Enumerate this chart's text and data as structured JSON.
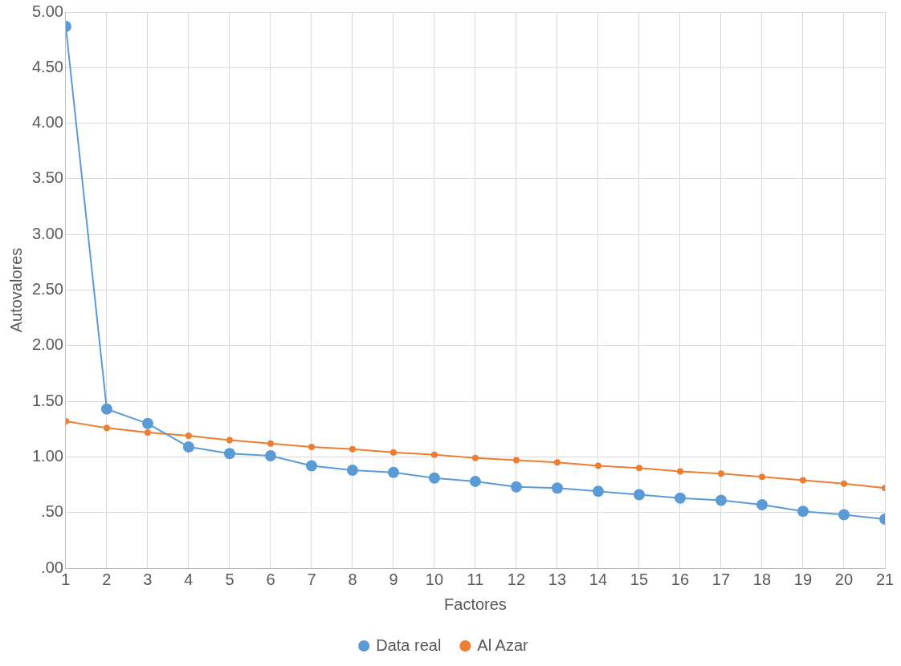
{
  "chart_data": {
    "type": "line",
    "xlabel": "Factores",
    "ylabel": "Autovalores",
    "x": [
      1,
      2,
      3,
      4,
      5,
      6,
      7,
      8,
      9,
      10,
      11,
      12,
      13,
      14,
      15,
      16,
      17,
      18,
      19,
      20,
      21
    ],
    "xlim": [
      1,
      21
    ],
    "xticks": [
      1,
      2,
      3,
      4,
      5,
      6,
      7,
      8,
      9,
      10,
      11,
      12,
      13,
      14,
      15,
      16,
      17,
      18,
      19,
      20,
      21
    ],
    "ylim": [
      0,
      5
    ],
    "yticks": [
      {
        "value": 0,
        "label": ".00"
      },
      {
        "value": 0.5,
        "label": ".50"
      },
      {
        "value": 1,
        "label": "1.00"
      },
      {
        "value": 1.5,
        "label": "1.50"
      },
      {
        "value": 2,
        "label": "2.00"
      },
      {
        "value": 2.5,
        "label": "2.50"
      },
      {
        "value": 3,
        "label": "3.00"
      },
      {
        "value": 3.5,
        "label": "3.50"
      },
      {
        "value": 4,
        "label": "4.00"
      },
      {
        "value": 4.5,
        "label": "4.50"
      },
      {
        "value": 5,
        "label": "5.00"
      }
    ],
    "series": [
      {
        "name": "Data real",
        "color": "#5b9bd5",
        "values": [
          4.87,
          1.43,
          1.3,
          1.09,
          1.03,
          1.01,
          0.92,
          0.88,
          0.86,
          0.81,
          0.78,
          0.73,
          0.72,
          0.69,
          0.66,
          0.63,
          0.61,
          0.57,
          0.51,
          0.48,
          0.44
        ]
      },
      {
        "name": "Al Azar",
        "color": "#ed7d31",
        "values": [
          1.32,
          1.26,
          1.22,
          1.19,
          1.15,
          1.12,
          1.09,
          1.07,
          1.04,
          1.02,
          0.99,
          0.97,
          0.95,
          0.92,
          0.9,
          0.87,
          0.85,
          0.82,
          0.79,
          0.76,
          0.72
        ]
      }
    ],
    "grid": true,
    "legend": "bottom",
    "marker": "circle",
    "line_style": "solid"
  }
}
